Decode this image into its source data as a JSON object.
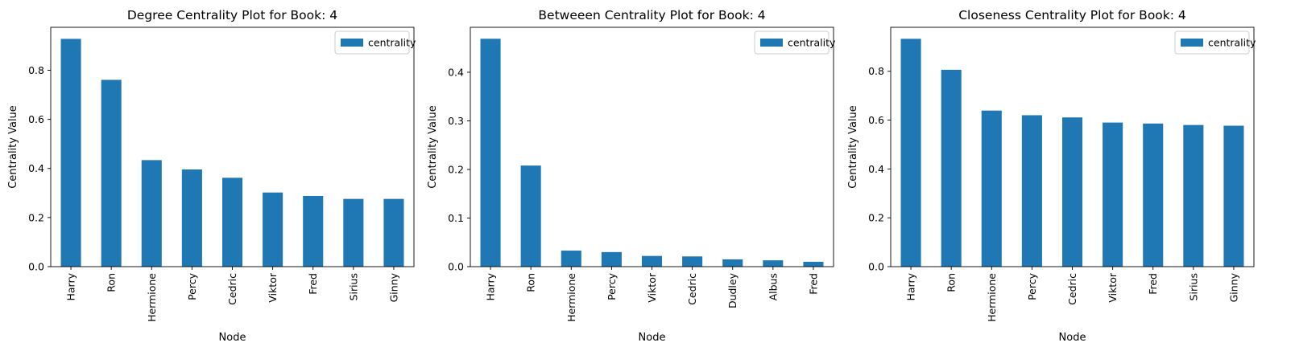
{
  "chart_data": [
    {
      "type": "bar",
      "title": "Degree Centrality Plot for Book: 4",
      "xlabel": "Node",
      "ylabel": "Centrality Value",
      "categories": [
        "Harry",
        "Ron",
        "Hermione",
        "Percy",
        "Cedric",
        "Viktor",
        "Fred",
        "Sirius",
        "Ginny"
      ],
      "series": [
        {
          "name": "centrality",
          "values": [
            0.928,
            0.761,
            0.434,
            0.396,
            0.362,
            0.302,
            0.288,
            0.276,
            0.276
          ]
        }
      ],
      "ylim": [
        0,
        0.975
      ],
      "yticks": [
        0.0,
        0.2,
        0.4,
        0.6,
        0.8
      ],
      "legend": "top-right",
      "grid": false,
      "bar_color": "#1f77b4"
    },
    {
      "type": "bar",
      "title": "Betweeen Centrality Plot for Book: 4",
      "xlabel": "Node",
      "ylabel": "Centrality Value",
      "categories": [
        "Harry",
        "Ron",
        "Hermione",
        "Percy",
        "Viktor",
        "Cedric",
        "Dudley",
        "Albus",
        "Fred"
      ],
      "series": [
        {
          "name": "centrality",
          "values": [
            0.469,
            0.208,
            0.033,
            0.03,
            0.022,
            0.021,
            0.015,
            0.013,
            0.01
          ]
        }
      ],
      "ylim": [
        0,
        0.4925
      ],
      "yticks": [
        0.0,
        0.1,
        0.2,
        0.3,
        0.4
      ],
      "legend": "top-right",
      "grid": false,
      "bar_color": "#1f77b4"
    },
    {
      "type": "bar",
      "title": "Closeness Centrality Plot for Book: 4",
      "xlabel": "Node",
      "ylabel": "Centrality Value",
      "categories": [
        "Harry",
        "Ron",
        "Hermione",
        "Percy",
        "Cedric",
        "Viktor",
        "Fred",
        "Sirius",
        "Ginny"
      ],
      "series": [
        {
          "name": "centrality",
          "values": [
            0.933,
            0.806,
            0.639,
            0.62,
            0.611,
            0.59,
            0.586,
            0.58,
            0.577
          ]
        }
      ],
      "ylim": [
        0,
        0.98
      ],
      "yticks": [
        0.0,
        0.2,
        0.4,
        0.6,
        0.8
      ],
      "legend": "top-right",
      "grid": false,
      "bar_color": "#1f77b4"
    }
  ]
}
